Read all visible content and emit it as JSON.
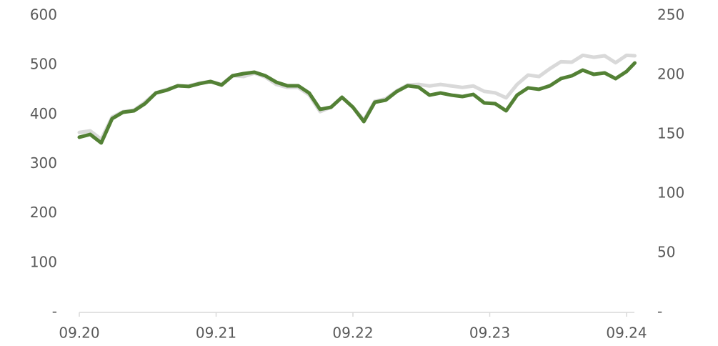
{
  "chart_data": {
    "type": "line",
    "x": [
      20,
      20.08,
      20.16,
      20.24,
      20.32,
      20.4,
      20.48,
      20.56,
      20.64,
      20.72,
      20.8,
      20.88,
      20.96,
      21.04,
      21.12,
      21.2,
      21.28,
      21.36,
      21.44,
      21.52,
      21.6,
      21.68,
      21.76,
      21.84,
      21.92,
      22,
      22.08,
      22.16,
      22.24,
      22.32,
      22.4,
      22.48,
      22.56,
      22.64,
      22.72,
      22.8,
      22.88,
      22.96,
      23.04,
      23.12,
      23.2,
      23.28,
      23.36,
      23.44,
      23.52,
      23.6,
      23.68,
      23.76,
      23.84,
      23.92,
      24,
      24.06
    ],
    "series": [
      {
        "color": "#d9d9d9",
        "values": [
          364,
          367,
          350,
          395,
          406,
          409,
          425,
          444,
          451,
          458,
          458,
          464,
          467,
          461,
          479,
          477,
          484,
          476,
          461,
          455,
          455,
          440,
          406,
          415,
          435,
          415,
          389,
          427,
          432,
          448,
          460,
          461,
          458,
          461,
          458,
          455,
          458,
          447,
          444,
          434,
          461,
          480,
          477,
          493,
          507,
          506,
          520,
          516,
          519,
          505,
          520,
          519
        ]
      },
      {
        "color": "#538135",
        "axis": "y2",
        "values": [
          147.6,
          150.0,
          142.8,
          163.3,
          168.7,
          169.9,
          175.9,
          184.9,
          187.3,
          191.0,
          190.4,
          192.8,
          194.6,
          191.6,
          199.4,
          201.2,
          202.4,
          199.4,
          194.0,
          191.0,
          191.0,
          184.9,
          171.1,
          172.9,
          181.3,
          172.9,
          160.8,
          177.1,
          178.9,
          186.1,
          191.0,
          189.8,
          183.1,
          184.9,
          183.1,
          181.9,
          183.7,
          176.5,
          175.9,
          169.9,
          183.1,
          189.2,
          188.0,
          191.0,
          197.0,
          199.4,
          204.2,
          200.6,
          201.8,
          197.0,
          203.0,
          210.2
        ]
      }
    ],
    "xlim": [
      20,
      24.07
    ],
    "xticks": [
      {
        "value": 20,
        "label": "09.20"
      },
      {
        "value": 21,
        "label": "09.21"
      },
      {
        "value": 22,
        "label": "09.22"
      },
      {
        "value": 23,
        "label": "09.23"
      },
      {
        "value": 24,
        "label": "09.24"
      }
    ],
    "ylim": [
      0,
      600
    ],
    "yticks": [
      {
        "value": 0,
        "label": "-"
      },
      100,
      200,
      300,
      400,
      500,
      600
    ],
    "y2lim": [
      0,
      250
    ],
    "y2ticks": [
      {
        "value": 0,
        "label": "-"
      },
      50,
      100,
      150,
      200,
      250
    ],
    "grid": false
  }
}
